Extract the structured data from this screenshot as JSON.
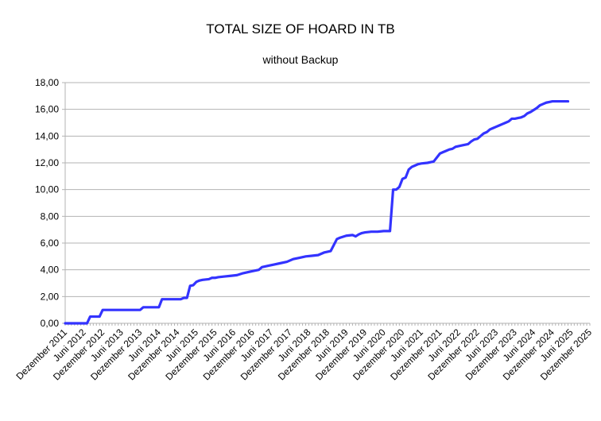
{
  "chart_data": {
    "type": "line",
    "title": "TOTAL SIZE OF HOARD IN TB",
    "subtitle": "without Backup",
    "xlabel": "",
    "ylabel": "",
    "ylim": [
      0,
      18
    ],
    "y_ticks": [
      "0,00",
      "2,00",
      "4,00",
      "6,00",
      "8,00",
      "10,00",
      "12,00",
      "14,00",
      "16,00",
      "18,00"
    ],
    "x_ticks": [
      "Dezember 2011",
      "Juni 2012",
      "Dezember 2012",
      "Juni 2013",
      "Dezember 2013",
      "Juni 2014",
      "Dezember 2014",
      "Juni 2015",
      "Dezember 2015",
      "Juni 2016",
      "Dezember 2016",
      "Juni 2017",
      "Dezember 2017",
      "Juni 2018",
      "Dezember 2018",
      "Juni 2019",
      "Dezember 2019",
      "Juni 2020",
      "Dezember 2020",
      "Juni 2021",
      "Dezember 2021",
      "Juni 2022",
      "Dezember 2022",
      "Juni 2023",
      "Dezember 2023",
      "Juni 2024",
      "Dezember 2024",
      "Juni 2025",
      "Dezember 2025"
    ],
    "grid": "horizontal",
    "line_color": "#3333ff",
    "series": [
      {
        "name": "",
        "x": [
          "2011-12",
          "2012-02",
          "2012-04",
          "2012-06",
          "2012-07",
          "2012-08",
          "2012-09",
          "2012-10",
          "2012-11",
          "2012-12",
          "2013-02",
          "2013-04",
          "2013-06",
          "2013-08",
          "2013-10",
          "2013-12",
          "2014-01",
          "2014-02",
          "2014-04",
          "2014-06",
          "2014-07",
          "2014-09",
          "2014-11",
          "2015-01",
          "2015-02",
          "2015-03",
          "2015-04",
          "2015-05",
          "2015-06",
          "2015-07",
          "2015-08",
          "2015-10",
          "2015-11",
          "2015-12",
          "2016-01",
          "2016-03",
          "2016-05",
          "2016-07",
          "2016-09",
          "2016-10",
          "2016-12",
          "2017-02",
          "2017-03",
          "2017-05",
          "2017-07",
          "2017-09",
          "2017-11",
          "2018-01",
          "2018-03",
          "2018-05",
          "2018-07",
          "2018-09",
          "2018-11",
          "2019-01",
          "2019-03",
          "2019-04",
          "2019-06",
          "2019-08",
          "2019-09",
          "2019-10",
          "2019-11",
          "2019-12",
          "2020-02",
          "2020-04",
          "2020-06",
          "2020-08",
          "2020-09",
          "2020-10",
          "2020-11",
          "2020-12",
          "2021-01",
          "2021-02",
          "2021-03",
          "2021-04",
          "2021-05",
          "2021-06",
          "2021-08",
          "2021-10",
          "2021-12",
          "2022-01",
          "2022-02",
          "2022-03",
          "2022-04",
          "2022-05",
          "2022-06",
          "2022-07",
          "2022-09",
          "2022-10",
          "2022-11",
          "2022-12",
          "2023-01",
          "2023-02",
          "2023-03",
          "2023-04",
          "2023-05",
          "2023-06",
          "2023-07",
          "2023-08",
          "2023-09",
          "2023-10",
          "2023-11",
          "2023-12",
          "2024-01",
          "2024-02",
          "2024-03",
          "2024-04",
          "2024-05",
          "2024-06",
          "2024-07",
          "2024-08",
          "2024-09",
          "2024-10",
          "2024-11",
          "2024-12",
          "2025-02",
          "2025-04",
          "2025-05"
        ],
        "values": [
          0.0,
          0.0,
          0.0,
          0.0,
          0.0,
          0.5,
          0.5,
          0.5,
          0.5,
          1.0,
          1.0,
          1.0,
          1.0,
          1.0,
          1.0,
          1.0,
          1.2,
          1.2,
          1.2,
          1.2,
          1.8,
          1.8,
          1.8,
          1.8,
          1.9,
          1.9,
          2.8,
          2.85,
          3.1,
          3.2,
          3.25,
          3.3,
          3.4,
          3.4,
          3.45,
          3.5,
          3.55,
          3.6,
          3.75,
          3.8,
          3.9,
          4.0,
          4.2,
          4.3,
          4.4,
          4.5,
          4.6,
          4.8,
          4.9,
          5.0,
          5.05,
          5.1,
          5.3,
          5.4,
          6.3,
          6.4,
          6.55,
          6.6,
          6.5,
          6.65,
          6.75,
          6.8,
          6.85,
          6.85,
          6.9,
          6.9,
          10.0,
          10.0,
          10.2,
          10.8,
          10.9,
          11.5,
          11.7,
          11.8,
          11.9,
          11.95,
          12.0,
          12.1,
          12.7,
          12.8,
          12.9,
          13.0,
          13.05,
          13.2,
          13.25,
          13.3,
          13.4,
          13.6,
          13.75,
          13.8,
          14.0,
          14.2,
          14.3,
          14.5,
          14.6,
          14.7,
          14.8,
          14.9,
          15.0,
          15.1,
          15.3,
          15.3,
          15.35,
          15.4,
          15.5,
          15.7,
          15.8,
          15.95,
          16.1,
          16.3,
          16.4,
          16.5,
          16.55,
          16.6,
          16.6,
          16.6,
          16.6
        ]
      }
    ]
  }
}
